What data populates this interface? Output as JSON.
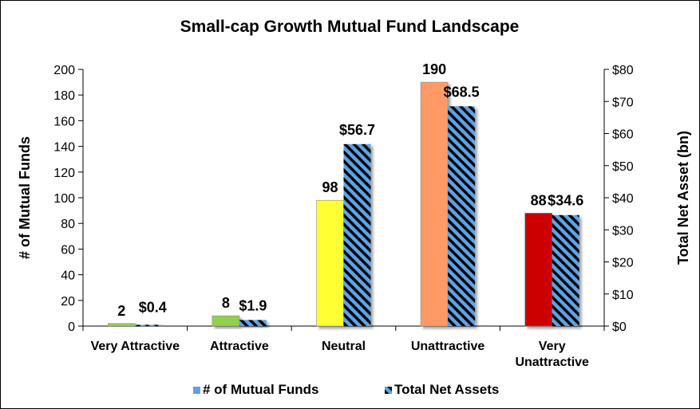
{
  "chart_data": {
    "type": "bar",
    "title": "Small-cap Growth Mutual Fund Landscape",
    "ylabel": "# of Mutual Funds",
    "y2label": "Total Net Asset (bn)",
    "ylim": [
      0,
      200
    ],
    "y2lim": [
      0,
      80
    ],
    "yticks": [
      "0",
      "20",
      "40",
      "60",
      "80",
      "100",
      "120",
      "140",
      "160",
      "180",
      "200"
    ],
    "y2ticks": [
      "$0",
      "$10",
      "$20",
      "$30",
      "$40",
      "$50",
      "$60",
      "$70",
      "$80"
    ],
    "categories": [
      [
        "Very Attractive"
      ],
      [
        "Attractive"
      ],
      [
        "Neutral"
      ],
      [
        "Unattractive"
      ],
      [
        "Very",
        "Unattractive"
      ]
    ],
    "series": [
      {
        "name": "# of Mutual Funds",
        "axis": "left",
        "values": [
          2,
          8,
          98,
          190,
          88
        ],
        "labels": [
          "2",
          "8",
          "98",
          "190",
          "88"
        ],
        "colors": [
          "#92d050",
          "#92d050",
          "#ffff33",
          "#ff9966",
          "#cc0000"
        ],
        "legend_color": "#5ba3e6"
      },
      {
        "name": "Total Net Assets",
        "axis": "right",
        "values": [
          0.4,
          1.9,
          56.7,
          68.5,
          34.6
        ],
        "labels": [
          "$0.4",
          "$1.9",
          "$56.7",
          "$68.5",
          "$34.6"
        ],
        "pattern": "diagonal-stripes",
        "colors": [
          "#000000",
          "#5ba3e6"
        ]
      }
    ],
    "legend_position": "bottom",
    "grid": false
  }
}
